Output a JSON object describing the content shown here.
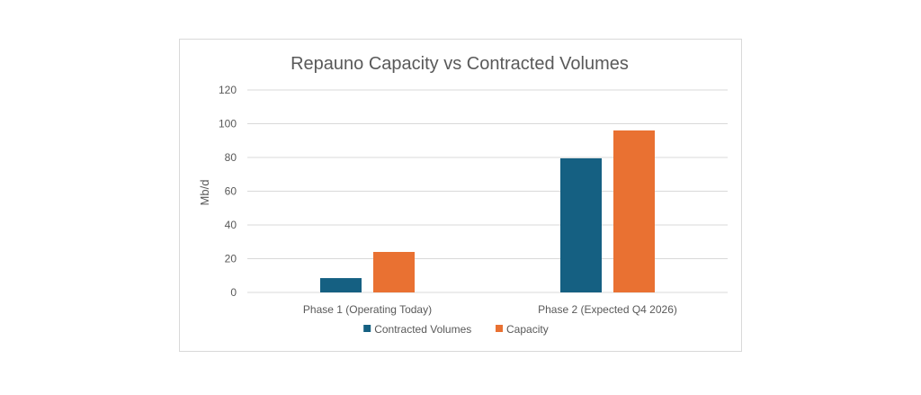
{
  "chart_data": {
    "type": "bar",
    "title": "Repauno Capacity vs Contracted Volumes",
    "xlabel": "",
    "ylabel": "Mb/d",
    "categories": [
      "Phase 1 (Operating Today)",
      "Phase 2 (Expected Q4 2026)"
    ],
    "series": [
      {
        "name": "Contracted Volumes",
        "values": [
          8.5,
          79.5
        ],
        "color": "#156082"
      },
      {
        "name": "Capacity",
        "values": [
          24,
          96
        ],
        "color": "#E97132"
      }
    ],
    "ylim": [
      0,
      120
    ],
    "yticks": [
      0,
      20,
      40,
      60,
      80,
      100,
      120
    ],
    "grid": true,
    "legend_position": "bottom"
  }
}
